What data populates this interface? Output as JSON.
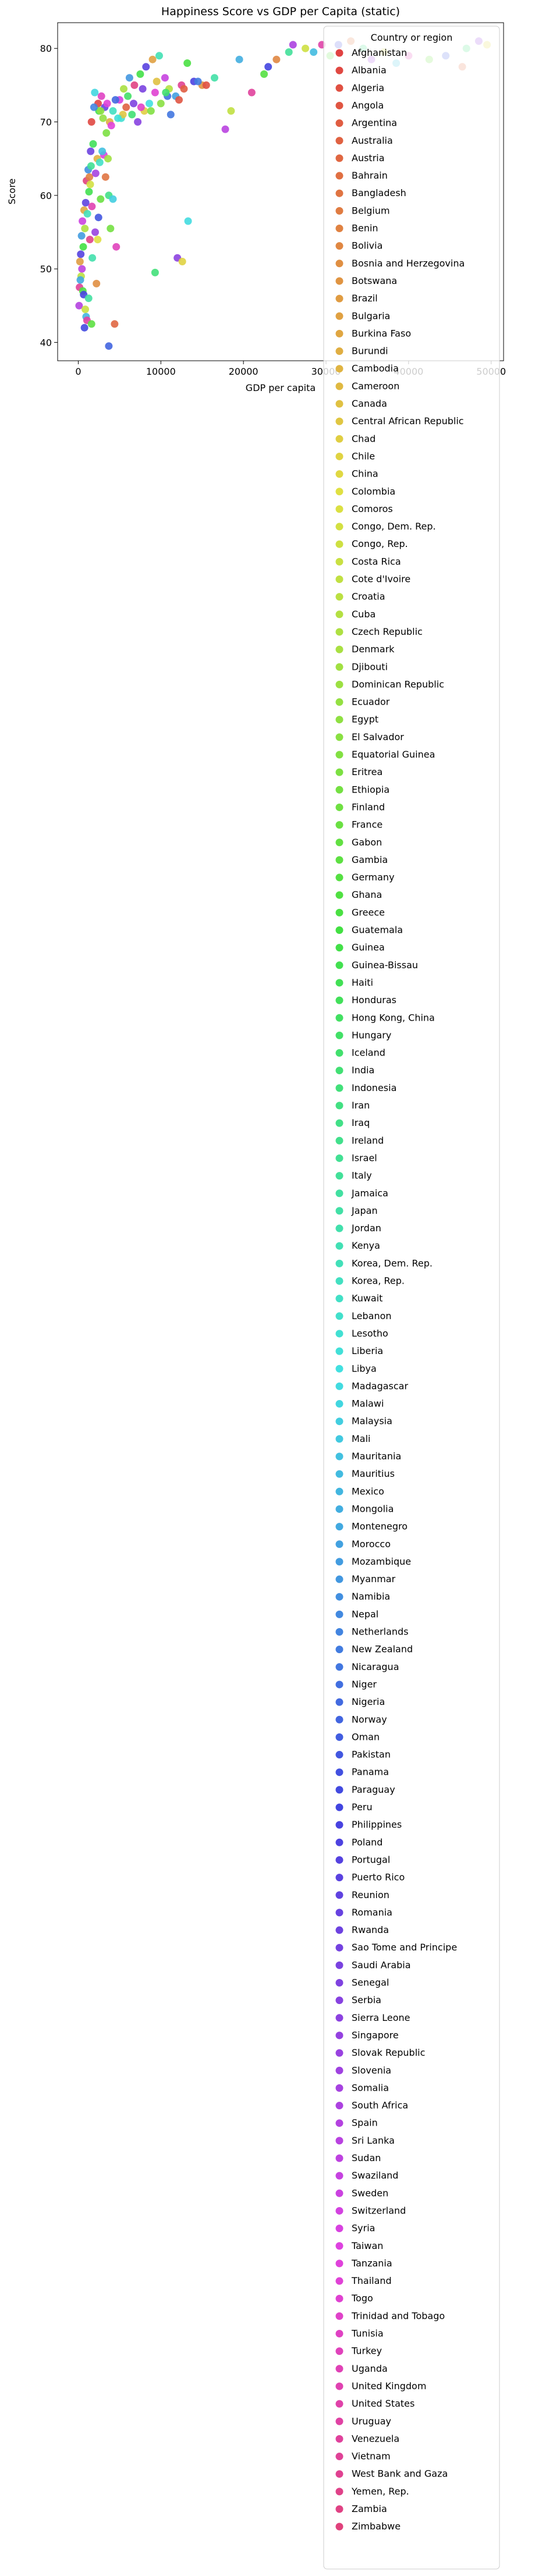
{
  "chart_data": {
    "type": "scatter",
    "title": "Happiness Score vs GDP per Capita (static)",
    "xlabel": "GDP per capita",
    "ylabel": "Score",
    "xlim": [
      -2500,
      51500
    ],
    "ylim": [
      37.5,
      83.5
    ],
    "xticks": [
      0,
      10000,
      20000,
      30000,
      40000,
      50000
    ],
    "xtick_labels": [
      "0",
      "10000",
      "20000",
      "30000",
      "40000",
      "50000"
    ],
    "yticks": [
      40,
      50,
      60,
      70,
      80
    ],
    "ytick_labels": [
      "40",
      "50",
      "60",
      "70",
      "80"
    ],
    "grid": false,
    "legend_title": "Country or region",
    "legend_placement": "upper right, extending far below the axes",
    "palette": "husl gradient from red through yellow, green, cyan, blue, purple to pink, one hue per country in legend order",
    "series_names": [
      "Afghanistan",
      "Albania",
      "Algeria",
      "Angola",
      "Argentina",
      "Australia",
      "Austria",
      "Bahrain",
      "Bangladesh",
      "Belgium",
      "Benin",
      "Bolivia",
      "Bosnia and Herzegovina",
      "Botswana",
      "Brazil",
      "Bulgaria",
      "Burkina Faso",
      "Burundi",
      "Cambodia",
      "Cameroon",
      "Canada",
      "Central African Republic",
      "Chad",
      "Chile",
      "China",
      "Colombia",
      "Comoros",
      "Congo, Dem. Rep.",
      "Congo, Rep.",
      "Costa Rica",
      "Cote d'Ivoire",
      "Croatia",
      "Cuba",
      "Czech Republic",
      "Denmark",
      "Djibouti",
      "Dominican Republic",
      "Ecuador",
      "Egypt",
      "El Salvador",
      "Equatorial Guinea",
      "Eritrea",
      "Ethiopia",
      "Finland",
      "France",
      "Gabon",
      "Gambia",
      "Germany",
      "Ghana",
      "Greece",
      "Guatemala",
      "Guinea",
      "Guinea-Bissau",
      "Haiti",
      "Honduras",
      "Hong Kong, China",
      "Hungary",
      "Iceland",
      "India",
      "Indonesia",
      "Iran",
      "Iraq",
      "Ireland",
      "Israel",
      "Italy",
      "Jamaica",
      "Japan",
      "Jordan",
      "Kenya",
      "Korea, Dem. Rep.",
      "Korea, Rep.",
      "Kuwait",
      "Lebanon",
      "Lesotho",
      "Liberia",
      "Libya",
      "Madagascar",
      "Malawi",
      "Malaysia",
      "Mali",
      "Mauritania",
      "Mauritius",
      "Mexico",
      "Mongolia",
      "Montenegro",
      "Morocco",
      "Mozambique",
      "Myanmar",
      "Namibia",
      "Nepal",
      "Netherlands",
      "New Zealand",
      "Nicaragua",
      "Niger",
      "Nigeria",
      "Norway",
      "Oman",
      "Pakistan",
      "Panama",
      "Paraguay",
      "Peru",
      "Philippines",
      "Poland",
      "Portugal",
      "Puerto Rico",
      "Reunion",
      "Romania",
      "Rwanda",
      "Sao Tome and Principe",
      "Saudi Arabia",
      "Senegal",
      "Serbia",
      "Sierra Leone",
      "Singapore",
      "Slovak Republic",
      "Slovenia",
      "Somalia",
      "South Africa",
      "Spain",
      "Sri Lanka",
      "Sudan",
      "Swaziland",
      "Sweden",
      "Switzerland",
      "Syria",
      "Taiwan",
      "Tanzania",
      "Thailand",
      "Togo",
      "Trinidad and Tobago",
      "Tunisia",
      "Turkey",
      "Uganda",
      "United Kingdom",
      "United States",
      "Uruguay",
      "Venezuela",
      "Vietnam",
      "West Bank and Gaza",
      "Yemen, Rep.",
      "Zambia",
      "Zimbabwe"
    ],
    "points": [
      [
        2400,
        72.5
      ],
      [
        2500,
        71.5
      ],
      [
        3200,
        72.0
      ],
      [
        3800,
        70.0
      ],
      [
        4200,
        71.5
      ],
      [
        5000,
        73.0
      ],
      [
        5500,
        74.5
      ],
      [
        6200,
        76.0
      ],
      [
        6800,
        75.0
      ],
      [
        7500,
        76.5
      ],
      [
        8200,
        77.5
      ],
      [
        9000,
        78.5
      ],
      [
        9800,
        79.0
      ],
      [
        10500,
        76.0
      ],
      [
        11000,
        74.5
      ],
      [
        11800,
        73.5
      ],
      [
        12500,
        75.0
      ],
      [
        13200,
        78.0
      ],
      [
        14000,
        75.5
      ],
      [
        15000,
        75.0
      ],
      [
        16500,
        76.0
      ],
      [
        17800,
        69.0
      ],
      [
        18500,
        71.5
      ],
      [
        19500,
        78.5
      ],
      [
        21000,
        74.0
      ],
      [
        22500,
        76.5
      ],
      [
        23000,
        77.5
      ],
      [
        24000,
        78.5
      ],
      [
        25500,
        79.5
      ],
      [
        26000,
        80.5
      ],
      [
        27500,
        80.0
      ],
      [
        28500,
        79.5
      ],
      [
        29500,
        80.5
      ],
      [
        30500,
        79.0
      ],
      [
        31500,
        80.5
      ],
      [
        33000,
        81.0
      ],
      [
        34500,
        80.0
      ],
      [
        35500,
        78.5
      ],
      [
        37000,
        79.5
      ],
      [
        38500,
        78.0
      ],
      [
        40000,
        79.0
      ],
      [
        42500,
        78.5
      ],
      [
        44500,
        79.0
      ],
      [
        46500,
        77.5
      ],
      [
        47000,
        80.0
      ],
      [
        48500,
        81.0
      ],
      [
        49500,
        80.5
      ],
      [
        2000,
        74.0
      ],
      [
        2800,
        73.5
      ],
      [
        3400,
        68.5
      ],
      [
        4500,
        73.0
      ],
      [
        5800,
        72.0
      ],
      [
        6500,
        71.0
      ],
      [
        7200,
        70.0
      ],
      [
        8000,
        71.5
      ],
      [
        8600,
        72.5
      ],
      [
        9300,
        74.0
      ],
      [
        10000,
        72.5
      ],
      [
        11200,
        71.0
      ],
      [
        12200,
        73.0
      ],
      [
        6000,
        73.5
      ],
      [
        7800,
        74.5
      ],
      [
        9500,
        75.5
      ],
      [
        5200,
        70.5
      ],
      [
        4000,
        69.5
      ],
      [
        3000,
        70.5
      ],
      [
        1900,
        72.0
      ],
      [
        1600,
        70.0
      ],
      [
        1800,
        67.0
      ],
      [
        1500,
        66.0
      ],
      [
        2300,
        65.0
      ],
      [
        2600,
        64.5
      ],
      [
        3100,
        65.5
      ],
      [
        3600,
        65.0
      ],
      [
        1200,
        63.5
      ],
      [
        1000,
        62.0
      ],
      [
        1300,
        60.5
      ],
      [
        900,
        59.0
      ],
      [
        700,
        58.0
      ],
      [
        1100,
        57.5
      ],
      [
        500,
        56.5
      ],
      [
        800,
        55.5
      ],
      [
        400,
        54.5
      ],
      [
        1400,
        54.0
      ],
      [
        600,
        53.0
      ],
      [
        300,
        52.0
      ],
      [
        200,
        51.0
      ],
      [
        1700,
        51.5
      ],
      [
        450,
        50.0
      ],
      [
        350,
        49.0
      ],
      [
        250,
        48.5
      ],
      [
        150,
        47.5
      ],
      [
        550,
        47.0
      ],
      [
        650,
        46.5
      ],
      [
        2200,
        48.0
      ],
      [
        1250,
        46.0
      ],
      [
        100,
        45.0
      ],
      [
        850,
        44.5
      ],
      [
        950,
        43.5
      ],
      [
        1050,
        43.0
      ],
      [
        1600,
        42.5
      ],
      [
        750,
        42.0
      ],
      [
        1350,
        62.5
      ],
      [
        1550,
        64.0
      ],
      [
        2100,
        63.0
      ],
      [
        1450,
        61.5
      ],
      [
        2900,
        66.0
      ],
      [
        1650,
        58.5
      ],
      [
        2700,
        59.5
      ],
      [
        2450,
        57.0
      ],
      [
        3300,
        62.5
      ],
      [
        3700,
        60.0
      ],
      [
        2050,
        55.0
      ],
      [
        2350,
        54.0
      ],
      [
        4200,
        59.5
      ],
      [
        4600,
        53.0
      ],
      [
        3900,
        55.5
      ],
      [
        3700,
        39.5
      ],
      [
        4400,
        42.5
      ],
      [
        9300,
        49.5
      ],
      [
        12000,
        51.5
      ],
      [
        12600,
        51.0
      ],
      [
        13300,
        56.5
      ],
      [
        7600,
        72.0
      ],
      [
        8800,
        71.5
      ],
      [
        10800,
        73.5
      ],
      [
        12800,
        74.5
      ],
      [
        10600,
        74.0
      ],
      [
        6700,
        72.5
      ],
      [
        5400,
        71.0
      ],
      [
        4800,
        70.5
      ],
      [
        3500,
        72.5
      ],
      [
        2700,
        71.5
      ],
      [
        14500,
        75.5
      ],
      [
        15500,
        75.0
      ]
    ]
  }
}
